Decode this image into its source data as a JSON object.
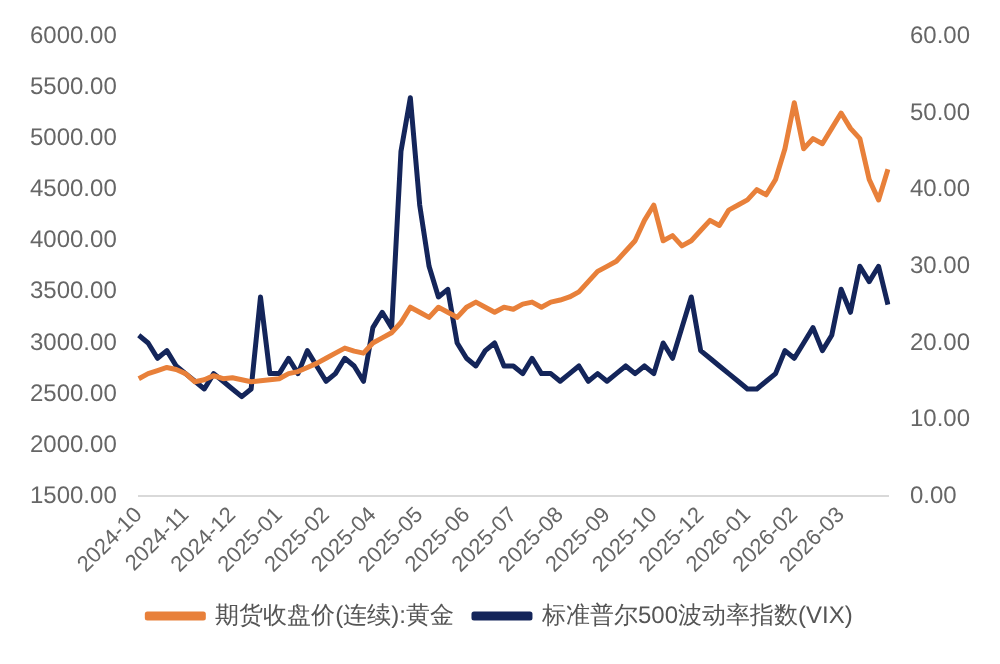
{
  "chart_data": {
    "type": "line",
    "categories": [
      "2024-10",
      null,
      null,
      null,
      null,
      "2024-11",
      null,
      null,
      null,
      null,
      "2024-12",
      null,
      null,
      null,
      null,
      "2025-01",
      null,
      null,
      null,
      null,
      "2025-02",
      null,
      null,
      null,
      null,
      "2025-04",
      null,
      null,
      null,
      null,
      "2025-05",
      null,
      null,
      null,
      null,
      "2025-06",
      null,
      null,
      null,
      null,
      "2025-07",
      null,
      null,
      null,
      null,
      "2025-08",
      null,
      null,
      null,
      null,
      "2025-09",
      null,
      null,
      null,
      null,
      "2025-10",
      null,
      null,
      null,
      null,
      "2025-12",
      null,
      null,
      null,
      null,
      "2026-01",
      null,
      null,
      null,
      null,
      "2026-02",
      null,
      null,
      null,
      null,
      "2026-03",
      null,
      null,
      null,
      null,
      null
    ],
    "series": [
      {
        "name": "期货收盘价(连续):黄金",
        "color": "#e8803a",
        "values": [
          2650,
          2700,
          2730,
          2760,
          2740,
          2700,
          2620,
          2640,
          2680,
          2650,
          2660,
          2640,
          2620,
          2630,
          2640,
          2650,
          2700,
          2720,
          2760,
          2800,
          2850,
          2900,
          2950,
          2920,
          2900,
          3000,
          3050,
          3100,
          3200,
          3350,
          3300,
          3250,
          3350,
          3300,
          3250,
          3350,
          3400,
          3350,
          3300,
          3350,
          3330,
          3380,
          3400,
          3350,
          3400,
          3420,
          3450,
          3500,
          3600,
          3700,
          3750,
          3800,
          3900,
          4000,
          4200,
          4350,
          4000,
          4050,
          3950,
          4000,
          4100,
          4200,
          4150,
          4300,
          4350,
          4400,
          4500,
          4450,
          4600,
          4900,
          5350,
          4900,
          5000,
          4950,
          5100,
          5250,
          5100,
          5000,
          4600,
          4400,
          4700
        ]
      },
      {
        "name": "标准普尔500波动率指数(VIX)",
        "color": "#14255a",
        "axis": "y2",
        "values": [
          21,
          20,
          18,
          19,
          17,
          16,
          15,
          14,
          16,
          15,
          14,
          13,
          14,
          26,
          16,
          16,
          18,
          16,
          19,
          17,
          15,
          16,
          18,
          17,
          15,
          22,
          24,
          22,
          45,
          52,
          38,
          30,
          26,
          27,
          20,
          18,
          17,
          19,
          20,
          17,
          17,
          16,
          18,
          16,
          16,
          15,
          16,
          17,
          15,
          16,
          15,
          16,
          17,
          16,
          17,
          16,
          20,
          18,
          22,
          26,
          19,
          18,
          17,
          16,
          15,
          14,
          14,
          15,
          16,
          19,
          18,
          20,
          22,
          19,
          21,
          27,
          24,
          30,
          28,
          30,
          25
        ]
      }
    ],
    "ylim": [
      1500,
      6000
    ],
    "yticks": [
      {
        "value": 1500,
        "label": "1500.00"
      },
      {
        "value": 2000,
        "label": "2000.00"
      },
      {
        "value": 2500,
        "label": "2500.00"
      },
      {
        "value": 3000,
        "label": "3000.00"
      },
      {
        "value": 3500,
        "label": "3500.00"
      },
      {
        "value": 4000,
        "label": "4000.00"
      },
      {
        "value": 4500,
        "label": "4500.00"
      },
      {
        "value": 5000,
        "label": "5000.00"
      },
      {
        "value": 5500,
        "label": "5500.00"
      },
      {
        "value": 6000,
        "label": "6000.00"
      }
    ],
    "y2lim": [
      0,
      60
    ],
    "y2ticks": [
      {
        "value": 0,
        "label": "0.00"
      },
      {
        "value": 10,
        "label": "10.00"
      },
      {
        "value": 20,
        "label": "20.00"
      },
      {
        "value": 30,
        "label": "30.00"
      },
      {
        "value": 40,
        "label": "40.00"
      },
      {
        "value": 50,
        "label": "50.00"
      },
      {
        "value": 60,
        "label": "60.00"
      }
    ],
    "grid": false,
    "legend": "bottom",
    "marker": "none",
    "line_style": "solid"
  }
}
